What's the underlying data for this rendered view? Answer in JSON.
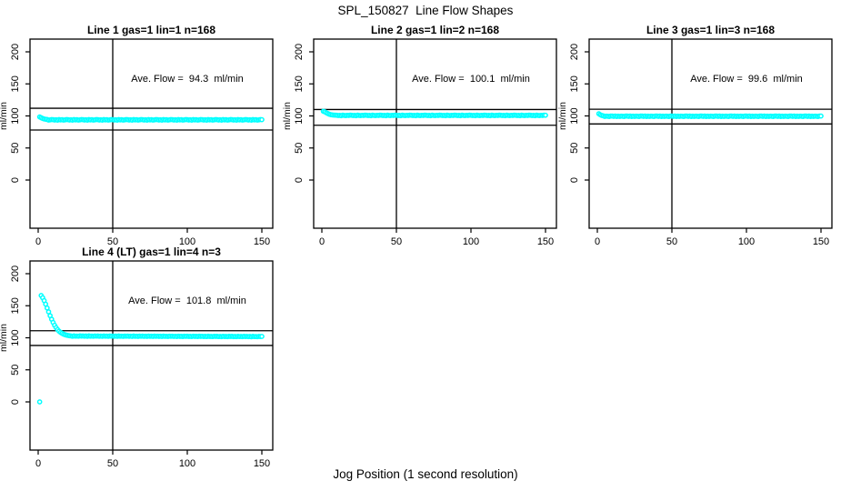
{
  "title": "SPL_150827  Line Flow Shapes",
  "xlabel": "Jog Position (1 second resolution)",
  "colors": {
    "data": "#00ffff",
    "line": "#000000",
    "background": "#ffffff"
  },
  "chart_data": [
    {
      "type": "scatter",
      "title": "Line 1 gas=1 lin=1 n=168",
      "annotation": "Ave. Flow =  94.3  ml/min",
      "ave_flow_ml_min": 94.3,
      "n": 168,
      "ylabel": "ml/min",
      "xlim": [
        0,
        150
      ],
      "ylim": [
        0,
        200
      ],
      "x_ticks": [
        0,
        50,
        100,
        150
      ],
      "y_ticks": [
        0,
        50,
        100,
        150,
        200
      ],
      "vline_x": 50,
      "ref_upper": 112,
      "ref_lower": 78,
      "series": {
        "head_x_start": 1,
        "head_y": [
          98.4,
          97.2,
          96.1,
          95.3,
          94.8,
          94.5
        ],
        "flat_to": 150,
        "flat_mean": 93.9,
        "flat_pattern": [
          0.3,
          -0.3,
          0.1,
          -0.5,
          0.4,
          -0.1,
          0.2,
          -0.4,
          0.0,
          0.5
        ]
      }
    },
    {
      "type": "scatter",
      "title": "Line 2 gas=1 lin=2 n=168",
      "annotation": "Ave. Flow =  100.1  ml/min",
      "ave_flow_ml_min": 100.1,
      "n": 168,
      "ylabel": "ml/min",
      "xlim": [
        0,
        150
      ],
      "ylim": [
        0,
        200
      ],
      "x_ticks": [
        0,
        50,
        100,
        150
      ],
      "y_ticks": [
        0,
        50,
        100,
        150,
        200
      ],
      "vline_x": 50,
      "ref_upper": 110,
      "ref_lower": 85.5,
      "series": {
        "head_x_start": 1,
        "head_y": [
          107.3,
          106.4,
          104.9,
          103.7,
          102.7,
          102.0,
          101.6,
          101.3
        ],
        "flat_to": 150,
        "flat_mean": 100.8,
        "flat_pattern": [
          0.3,
          -0.2,
          0.1,
          -0.4,
          0.4,
          0.0,
          -0.3,
          0.2,
          -0.1,
          0.4
        ]
      }
    },
    {
      "type": "scatter",
      "title": "Line 3 gas=1 lin=3 n=168",
      "annotation": "Ave. Flow =  99.6  ml/min",
      "ave_flow_ml_min": 99.6,
      "n": 168,
      "ylabel": "ml/min",
      "xlim": [
        0,
        150
      ],
      "ylim": [
        0,
        200
      ],
      "x_ticks": [
        0,
        50,
        100,
        150
      ],
      "y_ticks": [
        0,
        50,
        100,
        150,
        200
      ],
      "vline_x": 50,
      "ref_upper": 110.5,
      "ref_lower": 87.5,
      "series": {
        "head_x_start": 1,
        "head_y": [
          103.4,
          101.8,
          100.7,
          100.2
        ],
        "flat_to": 150,
        "flat_mean": 99.5,
        "flat_pattern": [
          0.3,
          -0.2,
          0.4,
          -0.4,
          0.1,
          -0.3,
          0.2,
          0.0,
          -0.4,
          0.4
        ]
      }
    },
    {
      "type": "scatter",
      "title": "Line 4 (LT) gas=1 lin=4 n=3",
      "annotation": "Ave. Flow =  101.8  ml/min",
      "ave_flow_ml_min": 101.8,
      "n": 3,
      "ylabel": "ml/min",
      "xlim": [
        0,
        150
      ],
      "ylim": [
        0,
        200
      ],
      "x_ticks": [
        0,
        50,
        100,
        150
      ],
      "y_ticks": [
        0,
        50,
        100,
        150,
        200
      ],
      "vline_x": 50,
      "ref_upper": 111,
      "ref_lower": 88,
      "series": {
        "outlier": [
          1,
          0
        ],
        "head_x_start": 2,
        "head_y": [
          166,
          162.5,
          158,
          152.5,
          146.5,
          140.5,
          134.5,
          129,
          124,
          119.5,
          115.8,
          112.8,
          110.3,
          108.4,
          106.9,
          105.7,
          104.8,
          104.1,
          103.6,
          103.2,
          102.9
        ],
        "flat_to": 150,
        "flat_mean": 102.7,
        "flat_mean_end": 101.9,
        "flat_pattern": [
          0.25,
          -0.2,
          0.15,
          -0.3,
          0.35,
          -0.1,
          0.1,
          -0.25,
          0.3,
          0.0
        ]
      }
    }
  ]
}
